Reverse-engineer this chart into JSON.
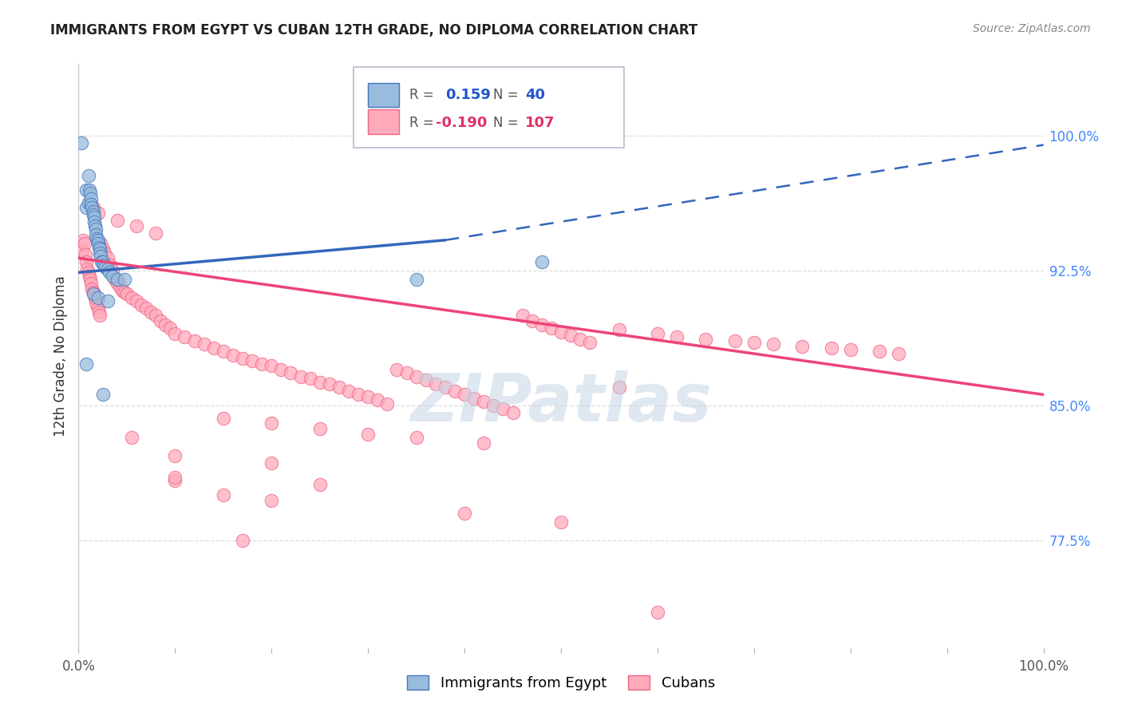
{
  "title": "IMMIGRANTS FROM EGYPT VS CUBAN 12TH GRADE, NO DIPLOMA CORRELATION CHART",
  "source": "Source: ZipAtlas.com",
  "ylabel": "12th Grade, No Diploma",
  "ytick_labels": [
    "100.0%",
    "92.5%",
    "85.0%",
    "77.5%"
  ],
  "ytick_values": [
    1.0,
    0.925,
    0.85,
    0.775
  ],
  "xlim": [
    0.0,
    1.0
  ],
  "ylim": [
    0.715,
    1.04
  ],
  "legend_blue_r": "0.159",
  "legend_blue_n": "40",
  "legend_pink_r": "-0.190",
  "legend_pink_n": "107",
  "blue_fill": "#99BBDD",
  "blue_edge": "#4477BB",
  "pink_fill": "#FFAABB",
  "pink_edge": "#EE6688",
  "blue_line_color": "#3366BB",
  "pink_line_color": "#EE4477",
  "blue_scatter_x": [
    0.003,
    0.008,
    0.008,
    0.01,
    0.01,
    0.011,
    0.012,
    0.013,
    0.013,
    0.014,
    0.015,
    0.015,
    0.016,
    0.016,
    0.017,
    0.018,
    0.018,
    0.019,
    0.02,
    0.02,
    0.021,
    0.022,
    0.022,
    0.023,
    0.024,
    0.025,
    0.026,
    0.028,
    0.03,
    0.032,
    0.035,
    0.04,
    0.015,
    0.02,
    0.03,
    0.048,
    0.008,
    0.025,
    0.35,
    0.48
  ],
  "blue_scatter_y": [
    0.996,
    0.97,
    0.96,
    0.978,
    0.963,
    0.97,
    0.968,
    0.965,
    0.962,
    0.96,
    0.958,
    0.956,
    0.955,
    0.952,
    0.95,
    0.948,
    0.945,
    0.943,
    0.942,
    0.94,
    0.938,
    0.937,
    0.935,
    0.933,
    0.93,
    0.93,
    0.928,
    0.927,
    0.926,
    0.924,
    0.922,
    0.92,
    0.912,
    0.91,
    0.908,
    0.92,
    0.873,
    0.856,
    0.92,
    0.93
  ],
  "pink_scatter_x": [
    0.004,
    0.005,
    0.006,
    0.007,
    0.008,
    0.009,
    0.01,
    0.011,
    0.012,
    0.013,
    0.014,
    0.015,
    0.016,
    0.017,
    0.018,
    0.019,
    0.02,
    0.021,
    0.022,
    0.023,
    0.025,
    0.027,
    0.03,
    0.033,
    0.035,
    0.038,
    0.04,
    0.043,
    0.045,
    0.048,
    0.05,
    0.055,
    0.06,
    0.065,
    0.07,
    0.075,
    0.08,
    0.085,
    0.09,
    0.095,
    0.1,
    0.11,
    0.12,
    0.13,
    0.14,
    0.15,
    0.16,
    0.17,
    0.18,
    0.19,
    0.2,
    0.21,
    0.22,
    0.23,
    0.24,
    0.25,
    0.26,
    0.27,
    0.28,
    0.29,
    0.3,
    0.31,
    0.32,
    0.33,
    0.34,
    0.35,
    0.36,
    0.37,
    0.38,
    0.39,
    0.4,
    0.41,
    0.42,
    0.43,
    0.44,
    0.45,
    0.46,
    0.47,
    0.48,
    0.49,
    0.5,
    0.51,
    0.52,
    0.53,
    0.56,
    0.6,
    0.62,
    0.65,
    0.68,
    0.7,
    0.72,
    0.75,
    0.78,
    0.8,
    0.83,
    0.85,
    0.015,
    0.02,
    0.04,
    0.06,
    0.08,
    0.15,
    0.2,
    0.25,
    0.3,
    0.35,
    0.42,
    0.56
  ],
  "pink_scatter_y": [
    0.936,
    0.942,
    0.94,
    0.934,
    0.93,
    0.926,
    0.924,
    0.922,
    0.92,
    0.918,
    0.915,
    0.913,
    0.912,
    0.91,
    0.908,
    0.906,
    0.904,
    0.902,
    0.9,
    0.94,
    0.937,
    0.935,
    0.932,
    0.928,
    0.925,
    0.92,
    0.918,
    0.916,
    0.914,
    0.913,
    0.912,
    0.91,
    0.908,
    0.906,
    0.904,
    0.902,
    0.9,
    0.897,
    0.895,
    0.893,
    0.89,
    0.888,
    0.886,
    0.884,
    0.882,
    0.88,
    0.878,
    0.876,
    0.875,
    0.873,
    0.872,
    0.87,
    0.868,
    0.866,
    0.865,
    0.863,
    0.862,
    0.86,
    0.858,
    0.856,
    0.855,
    0.853,
    0.851,
    0.87,
    0.868,
    0.866,
    0.864,
    0.862,
    0.86,
    0.858,
    0.856,
    0.854,
    0.852,
    0.85,
    0.848,
    0.846,
    0.9,
    0.897,
    0.895,
    0.893,
    0.891,
    0.889,
    0.887,
    0.885,
    0.892,
    0.89,
    0.888,
    0.887,
    0.886,
    0.885,
    0.884,
    0.883,
    0.882,
    0.881,
    0.88,
    0.879,
    0.96,
    0.957,
    0.953,
    0.95,
    0.946,
    0.843,
    0.84,
    0.837,
    0.834,
    0.832,
    0.829,
    0.86
  ],
  "blue_trendline_x": [
    0.0,
    0.38,
    1.0
  ],
  "blue_trendline_y": [
    0.924,
    0.942,
    0.995
  ],
  "pink_trendline_x": [
    0.0,
    1.0
  ],
  "pink_trendline_y": [
    0.932,
    0.856
  ],
  "watermark": "ZIPatlas",
  "bg_color": "#FFFFFF",
  "grid_color": "#DDDDDD",
  "right_axis_color": "#4488FF",
  "bottom_legend_entries": [
    "Immigrants from Egypt",
    "Cubans"
  ],
  "extra_pink_low": [
    [
      0.17,
      0.775
    ],
    [
      0.6,
      0.735
    ],
    [
      0.1,
      0.808
    ],
    [
      0.15,
      0.8
    ],
    [
      0.2,
      0.797
    ],
    [
      0.055,
      0.832
    ],
    [
      0.1,
      0.822
    ],
    [
      0.2,
      0.818
    ],
    [
      0.1,
      0.81
    ],
    [
      0.25,
      0.806
    ],
    [
      0.4,
      0.79
    ],
    [
      0.5,
      0.785
    ]
  ]
}
